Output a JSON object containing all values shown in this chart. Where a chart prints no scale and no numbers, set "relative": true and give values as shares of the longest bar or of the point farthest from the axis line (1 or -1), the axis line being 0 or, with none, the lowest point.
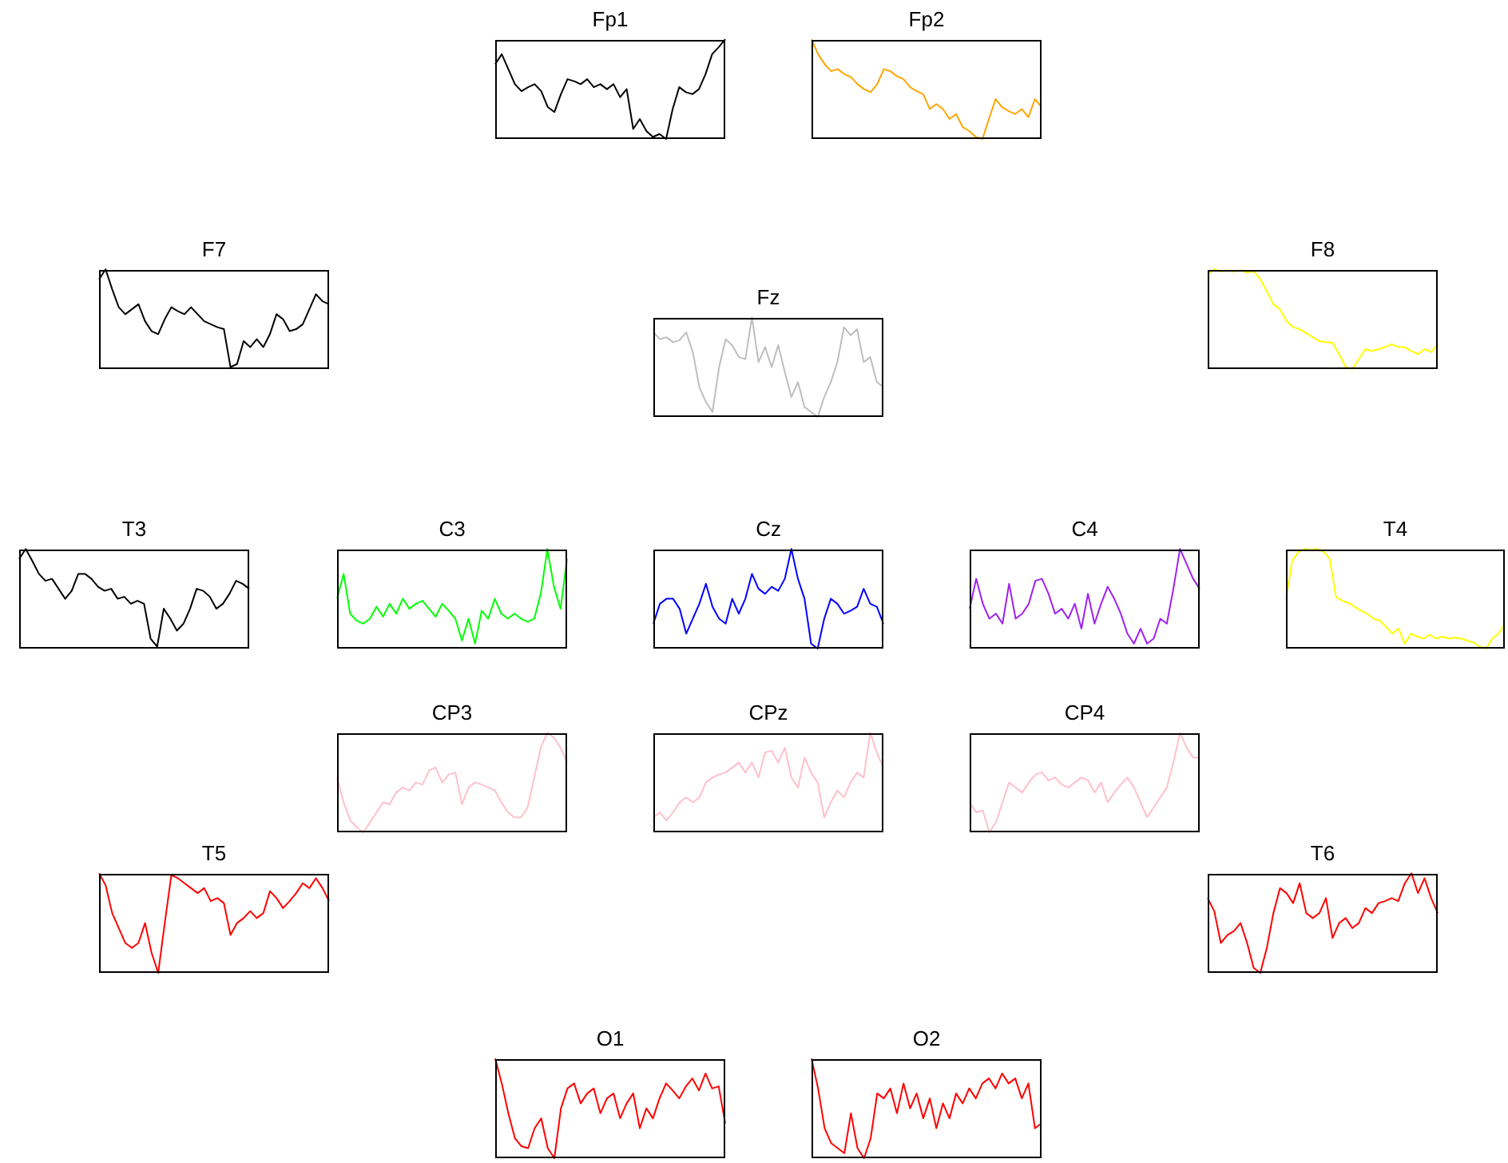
{
  "chart_data": [
    {
      "type": "line",
      "title": "Fp1",
      "relative": true,
      "categories": [
        null,
        null,
        null,
        null,
        null,
        null,
        null,
        null,
        null,
        null,
        null,
        null,
        null,
        null,
        null,
        null,
        null,
        null,
        null,
        null,
        null,
        null,
        null,
        null,
        null,
        null,
        null,
        null,
        null,
        null,
        null,
        null,
        null,
        null,
        null,
        null
      ],
      "series": [
        {
          "color": "#000000",
          "values": [
            0.75,
            0.85,
            0.7,
            0.55,
            0.48,
            0.52,
            0.55,
            0.48,
            0.32,
            0.27,
            0.45,
            0.6,
            0.58,
            0.55,
            0.6,
            0.52,
            0.55,
            0.5,
            0.55,
            0.42,
            0.5,
            0.1,
            0.2,
            0.08,
            0.02,
            0.05,
            0.0,
            0.3,
            0.52,
            0.47,
            0.45,
            0.5,
            0.65,
            0.85,
            0.92,
            1.0
          ]
        }
      ]
    },
    {
      "type": "line",
      "title": "Fp2",
      "relative": true,
      "categories": [
        null,
        null,
        null,
        null,
        null,
        null,
        null,
        null,
        null,
        null,
        null,
        null,
        null,
        null,
        null,
        null,
        null,
        null,
        null,
        null,
        null,
        null,
        null,
        null,
        null,
        null,
        null,
        null,
        null,
        null,
        null,
        null,
        null,
        null,
        null,
        null
      ],
      "series": [
        {
          "color": "#ffa500",
          "values": [
            1.0,
            0.85,
            0.75,
            0.68,
            0.7,
            0.65,
            0.62,
            0.55,
            0.5,
            0.47,
            0.55,
            0.7,
            0.68,
            0.63,
            0.6,
            0.52,
            0.48,
            0.45,
            0.3,
            0.35,
            0.3,
            0.2,
            0.25,
            0.12,
            0.08,
            0.02,
            0.0,
            0.2,
            0.4,
            0.32,
            0.28,
            0.25,
            0.3,
            0.22,
            0.4,
            0.32
          ]
        }
      ]
    },
    {
      "type": "line",
      "title": "F7",
      "relative": true,
      "categories": [
        null,
        null,
        null,
        null,
        null,
        null,
        null,
        null,
        null,
        null,
        null,
        null,
        null,
        null,
        null,
        null,
        null,
        null,
        null,
        null,
        null,
        null,
        null,
        null,
        null,
        null,
        null,
        null,
        null,
        null,
        null,
        null,
        null,
        null,
        null,
        null
      ],
      "series": [
        {
          "color": "#000000",
          "values": [
            0.9,
            1.0,
            0.8,
            0.62,
            0.55,
            0.6,
            0.65,
            0.48,
            0.38,
            0.35,
            0.5,
            0.62,
            0.58,
            0.55,
            0.62,
            0.55,
            0.48,
            0.45,
            0.42,
            0.4,
            0.02,
            0.05,
            0.28,
            0.22,
            0.3,
            0.22,
            0.35,
            0.55,
            0.5,
            0.38,
            0.4,
            0.45,
            0.6,
            0.75,
            0.68,
            0.65
          ]
        }
      ]
    },
    {
      "type": "line",
      "title": "Fz",
      "relative": true,
      "categories": [
        null,
        null,
        null,
        null,
        null,
        null,
        null,
        null,
        null,
        null,
        null,
        null,
        null,
        null,
        null,
        null,
        null,
        null,
        null,
        null,
        null,
        null,
        null,
        null,
        null,
        null,
        null,
        null,
        null,
        null,
        null,
        null,
        null,
        null,
        null,
        null
      ],
      "series": [
        {
          "color": "#bebebe",
          "values": [
            0.85,
            0.78,
            0.8,
            0.75,
            0.77,
            0.85,
            0.65,
            0.3,
            0.15,
            0.05,
            0.5,
            0.78,
            0.72,
            0.6,
            0.58,
            1.0,
            0.55,
            0.7,
            0.5,
            0.72,
            0.45,
            0.2,
            0.35,
            0.1,
            0.05,
            0.0,
            0.2,
            0.35,
            0.55,
            0.9,
            0.82,
            0.88,
            0.55,
            0.6,
            0.35,
            0.3
          ]
        }
      ]
    },
    {
      "type": "line",
      "title": "F8",
      "relative": true,
      "categories": [
        null,
        null,
        null,
        null,
        null,
        null,
        null,
        null,
        null,
        null,
        null,
        null,
        null,
        null,
        null,
        null,
        null,
        null,
        null,
        null,
        null,
        null,
        null,
        null,
        null,
        null,
        null,
        null,
        null,
        null,
        null,
        null,
        null,
        null,
        null,
        null
      ],
      "series": [
        {
          "color": "#ffff00",
          "values": [
            0.95,
            1.0,
            0.98,
            0.99,
            0.98,
            0.99,
            0.97,
            0.98,
            0.9,
            0.78,
            0.65,
            0.6,
            0.48,
            0.42,
            0.4,
            0.36,
            0.32,
            0.28,
            0.27,
            0.26,
            0.15,
            0.02,
            0.0,
            0.1,
            0.2,
            0.18,
            0.2,
            0.22,
            0.25,
            0.22,
            0.22,
            0.18,
            0.15,
            0.2,
            0.17,
            0.25
          ]
        }
      ]
    },
    {
      "type": "line",
      "title": "T3",
      "relative": true,
      "categories": [
        null,
        null,
        null,
        null,
        null,
        null,
        null,
        null,
        null,
        null,
        null,
        null,
        null,
        null,
        null,
        null,
        null,
        null,
        null,
        null,
        null,
        null,
        null,
        null,
        null,
        null,
        null,
        null,
        null,
        null,
        null,
        null,
        null,
        null,
        null,
        null
      ],
      "series": [
        {
          "color": "#000000",
          "values": [
            0.9,
            1.0,
            0.88,
            0.75,
            0.68,
            0.7,
            0.6,
            0.5,
            0.58,
            0.75,
            0.75,
            0.7,
            0.62,
            0.58,
            0.6,
            0.5,
            0.52,
            0.45,
            0.48,
            0.45,
            0.1,
            0.02,
            0.4,
            0.3,
            0.18,
            0.25,
            0.4,
            0.6,
            0.58,
            0.52,
            0.4,
            0.45,
            0.55,
            0.68,
            0.65,
            0.6
          ]
        }
      ]
    },
    {
      "type": "line",
      "title": "C3",
      "relative": true,
      "categories": [
        null,
        null,
        null,
        null,
        null,
        null,
        null,
        null,
        null,
        null,
        null,
        null,
        null,
        null,
        null,
        null,
        null,
        null,
        null,
        null,
        null,
        null,
        null,
        null,
        null,
        null,
        null,
        null,
        null,
        null,
        null,
        null,
        null,
        null,
        null,
        null
      ],
      "series": [
        {
          "color": "#00ff00",
          "values": [
            0.5,
            0.75,
            0.35,
            0.28,
            0.25,
            0.3,
            0.42,
            0.32,
            0.45,
            0.35,
            0.5,
            0.4,
            0.45,
            0.48,
            0.4,
            0.32,
            0.45,
            0.38,
            0.3,
            0.08,
            0.3,
            0.05,
            0.38,
            0.3,
            0.5,
            0.35,
            0.3,
            0.35,
            0.3,
            0.27,
            0.3,
            0.55,
            1.0,
            0.62,
            0.4,
            0.9
          ]
        }
      ]
    },
    {
      "type": "line",
      "title": "Cz",
      "relative": true,
      "categories": [
        null,
        null,
        null,
        null,
        null,
        null,
        null,
        null,
        null,
        null,
        null,
        null,
        null,
        null,
        null,
        null,
        null,
        null,
        null,
        null,
        null,
        null,
        null,
        null,
        null,
        null,
        null,
        null,
        null,
        null,
        null,
        null,
        null,
        null,
        null,
        null
      ],
      "series": [
        {
          "color": "#0000ff",
          "values": [
            0.25,
            0.45,
            0.5,
            0.5,
            0.4,
            0.15,
            0.3,
            0.45,
            0.65,
            0.42,
            0.3,
            0.25,
            0.5,
            0.35,
            0.5,
            0.75,
            0.6,
            0.55,
            0.62,
            0.58,
            0.7,
            1.0,
            0.7,
            0.5,
            0.05,
            0.0,
            0.3,
            0.5,
            0.45,
            0.35,
            0.38,
            0.42,
            0.6,
            0.45,
            0.42,
            0.25
          ]
        }
      ]
    },
    {
      "type": "line",
      "title": "C4",
      "relative": true,
      "categories": [
        null,
        null,
        null,
        null,
        null,
        null,
        null,
        null,
        null,
        null,
        null,
        null,
        null,
        null,
        null,
        null,
        null,
        null,
        null,
        null,
        null,
        null,
        null,
        null,
        null,
        null,
        null,
        null,
        null,
        null,
        null,
        null,
        null,
        null,
        null,
        null
      ],
      "series": [
        {
          "color": "#a020f0",
          "values": [
            0.4,
            0.7,
            0.45,
            0.3,
            0.35,
            0.25,
            0.65,
            0.3,
            0.35,
            0.45,
            0.68,
            0.7,
            0.55,
            0.35,
            0.4,
            0.3,
            0.45,
            0.2,
            0.55,
            0.25,
            0.45,
            0.62,
            0.5,
            0.35,
            0.15,
            0.05,
            0.2,
            0.05,
            0.1,
            0.3,
            0.25,
            0.6,
            1.0,
            0.85,
            0.7,
            0.6
          ]
        }
      ]
    },
    {
      "type": "line",
      "title": "T4",
      "relative": true,
      "categories": [
        null,
        null,
        null,
        null,
        null,
        null,
        null,
        null,
        null,
        null,
        null,
        null,
        null,
        null,
        null,
        null,
        null,
        null,
        null,
        null,
        null,
        null,
        null,
        null,
        null,
        null,
        null,
        null,
        null,
        null,
        null,
        null,
        null,
        null,
        null,
        null
      ],
      "series": [
        {
          "color": "#ffff00",
          "values": [
            0.5,
            0.88,
            0.97,
            1.0,
            0.99,
            1.0,
            0.97,
            0.9,
            0.52,
            0.48,
            0.46,
            0.42,
            0.38,
            0.35,
            0.3,
            0.28,
            0.22,
            0.15,
            0.2,
            0.05,
            0.15,
            0.12,
            0.1,
            0.14,
            0.1,
            0.12,
            0.1,
            0.11,
            0.1,
            0.08,
            0.06,
            0.02,
            0.0,
            0.1,
            0.15,
            0.25
          ]
        }
      ]
    },
    {
      "type": "line",
      "title": "CP3",
      "relative": true,
      "categories": [
        null,
        null,
        null,
        null,
        null,
        null,
        null,
        null,
        null,
        null,
        null,
        null,
        null,
        null,
        null,
        null,
        null,
        null,
        null,
        null,
        null,
        null,
        null,
        null,
        null,
        null,
        null,
        null,
        null,
        null,
        null,
        null,
        null,
        null,
        null,
        null
      ],
      "series": [
        {
          "color": "#ffc0cb",
          "values": [
            0.55,
            0.3,
            0.12,
            0.05,
            0.0,
            0.1,
            0.2,
            0.3,
            0.28,
            0.4,
            0.45,
            0.42,
            0.5,
            0.48,
            0.62,
            0.65,
            0.5,
            0.58,
            0.6,
            0.28,
            0.45,
            0.5,
            0.48,
            0.45,
            0.42,
            0.3,
            0.2,
            0.15,
            0.15,
            0.25,
            0.55,
            0.85,
            1.0,
            0.95,
            0.85,
            0.7
          ]
        }
      ]
    },
    {
      "type": "line",
      "title": "CPz",
      "relative": true,
      "categories": [
        null,
        null,
        null,
        null,
        null,
        null,
        null,
        null,
        null,
        null,
        null,
        null,
        null,
        null,
        null,
        null,
        null,
        null,
        null,
        null,
        null,
        null,
        null,
        null,
        null,
        null,
        null,
        null,
        null,
        null,
        null,
        null,
        null,
        null,
        null,
        null
      ],
      "series": [
        {
          "color": "#ffc0cb",
          "values": [
            0.15,
            0.2,
            0.12,
            0.2,
            0.3,
            0.35,
            0.3,
            0.35,
            0.5,
            0.55,
            0.58,
            0.6,
            0.65,
            0.7,
            0.6,
            0.7,
            0.55,
            0.8,
            0.82,
            0.7,
            0.85,
            0.55,
            0.45,
            0.75,
            0.6,
            0.5,
            0.15,
            0.3,
            0.42,
            0.35,
            0.5,
            0.6,
            0.55,
            1.0,
            0.8,
            0.65
          ]
        }
      ]
    },
    {
      "type": "line",
      "title": "CP4",
      "relative": true,
      "categories": [
        null,
        null,
        null,
        null,
        null,
        null,
        null,
        null,
        null,
        null,
        null,
        null,
        null,
        null,
        null,
        null,
        null,
        null,
        null,
        null,
        null,
        null,
        null,
        null,
        null,
        null,
        null,
        null,
        null,
        null,
        null,
        null,
        null,
        null,
        null,
        null
      ],
      "series": [
        {
          "color": "#ffc0cb",
          "values": [
            0.3,
            0.2,
            0.22,
            0.0,
            0.1,
            0.3,
            0.5,
            0.45,
            0.4,
            0.5,
            0.58,
            0.6,
            0.52,
            0.55,
            0.48,
            0.45,
            0.5,
            0.55,
            0.52,
            0.4,
            0.5,
            0.3,
            0.4,
            0.48,
            0.55,
            0.45,
            0.3,
            0.15,
            0.25,
            0.35,
            0.45,
            0.7,
            1.0,
            0.85,
            0.75,
            0.75
          ]
        }
      ]
    },
    {
      "type": "line",
      "title": "T5",
      "relative": true,
      "categories": [
        null,
        null,
        null,
        null,
        null,
        null,
        null,
        null,
        null,
        null,
        null,
        null,
        null,
        null,
        null,
        null,
        null,
        null,
        null,
        null,
        null,
        null,
        null,
        null,
        null,
        null,
        null,
        null,
        null,
        null,
        null,
        null,
        null,
        null,
        null,
        null
      ],
      "series": [
        {
          "color": "#ff0000",
          "values": [
            1.0,
            0.88,
            0.6,
            0.45,
            0.3,
            0.25,
            0.3,
            0.5,
            0.2,
            0.0,
            0.5,
            0.98,
            0.95,
            0.9,
            0.85,
            0.8,
            0.85,
            0.72,
            0.75,
            0.7,
            0.38,
            0.5,
            0.55,
            0.62,
            0.55,
            0.6,
            0.82,
            0.75,
            0.65,
            0.72,
            0.8,
            0.9,
            0.85,
            0.95,
            0.85,
            0.72
          ]
        }
      ]
    },
    {
      "type": "line",
      "title": "T6",
      "relative": true,
      "categories": [
        null,
        null,
        null,
        null,
        null,
        null,
        null,
        null,
        null,
        null,
        null,
        null,
        null,
        null,
        null,
        null,
        null,
        null,
        null,
        null,
        null,
        null,
        null,
        null,
        null,
        null,
        null,
        null,
        null,
        null,
        null,
        null,
        null,
        null,
        null,
        null
      ],
      "series": [
        {
          "color": "#ff0000",
          "values": [
            0.75,
            0.62,
            0.3,
            0.38,
            0.42,
            0.5,
            0.3,
            0.05,
            0.0,
            0.25,
            0.6,
            0.85,
            0.8,
            0.7,
            0.9,
            0.6,
            0.55,
            0.6,
            0.75,
            0.35,
            0.5,
            0.55,
            0.45,
            0.5,
            0.65,
            0.6,
            0.7,
            0.72,
            0.75,
            0.72,
            0.9,
            1.0,
            0.8,
            0.95,
            0.75,
            0.6
          ]
        }
      ]
    },
    {
      "type": "line",
      "title": "O1",
      "relative": true,
      "categories": [
        null,
        null,
        null,
        null,
        null,
        null,
        null,
        null,
        null,
        null,
        null,
        null,
        null,
        null,
        null,
        null,
        null,
        null,
        null,
        null,
        null,
        null,
        null,
        null,
        null,
        null,
        null,
        null,
        null,
        null,
        null,
        null,
        null,
        null,
        null,
        null
      ],
      "series": [
        {
          "color": "#ff0000",
          "values": [
            1.0,
            0.75,
            0.45,
            0.2,
            0.12,
            0.1,
            0.3,
            0.4,
            0.1,
            0.0,
            0.5,
            0.7,
            0.75,
            0.55,
            0.65,
            0.7,
            0.45,
            0.6,
            0.65,
            0.4,
            0.55,
            0.65,
            0.3,
            0.5,
            0.4,
            0.6,
            0.75,
            0.68,
            0.6,
            0.72,
            0.8,
            0.68,
            0.85,
            0.7,
            0.72,
            0.35
          ]
        }
      ]
    },
    {
      "type": "line",
      "title": "O2",
      "relative": true,
      "categories": [
        null,
        null,
        null,
        null,
        null,
        null,
        null,
        null,
        null,
        null,
        null,
        null,
        null,
        null,
        null,
        null,
        null,
        null,
        null,
        null,
        null,
        null,
        null,
        null,
        null,
        null,
        null,
        null,
        null,
        null,
        null,
        null,
        null,
        null,
        null,
        null
      ],
      "series": [
        {
          "color": "#ff0000",
          "values": [
            1.0,
            0.7,
            0.3,
            0.15,
            0.1,
            0.05,
            0.45,
            0.1,
            0.0,
            0.2,
            0.65,
            0.6,
            0.7,
            0.45,
            0.75,
            0.5,
            0.65,
            0.4,
            0.6,
            0.3,
            0.55,
            0.4,
            0.65,
            0.55,
            0.7,
            0.6,
            0.75,
            0.8,
            0.7,
            0.85,
            0.75,
            0.8,
            0.6,
            0.75,
            0.3,
            0.35
          ]
        }
      ]
    }
  ]
}
